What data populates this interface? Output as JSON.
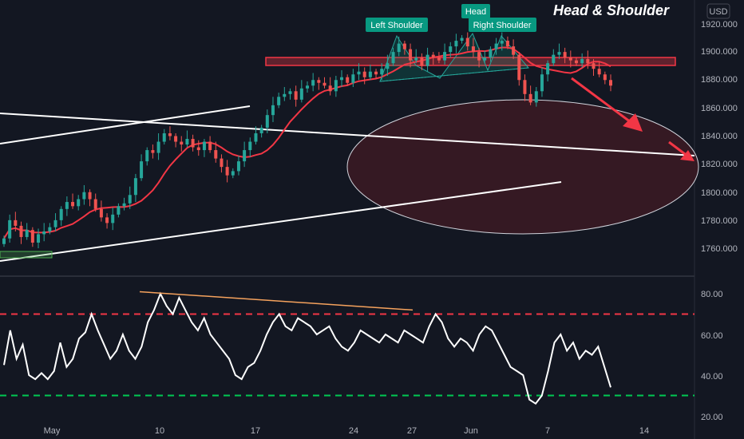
{
  "chart_data": [
    {
      "type": "candlestick",
      "title": "Head & Shoulder",
      "currency": "USD",
      "y_ticks": [
        "1920.000",
        "1900.000",
        "1880.000",
        "1860.000",
        "1840.000",
        "1820.000",
        "1800.000",
        "1780.000",
        "1760.000"
      ],
      "ylim": [
        1748,
        1924
      ],
      "x_ticks": [
        "May",
        "10",
        "17",
        "24",
        "27",
        "Jun",
        "7",
        "14"
      ],
      "annotations": [
        "Left Shoulder",
        "Head",
        "Right Shoulder"
      ],
      "colors": {
        "up": "#26a69a",
        "down": "#ef5350",
        "ma": "#f23645",
        "lines": "#ffffff",
        "zone": "#f23645",
        "ellipse_fill": "#3a1a24"
      },
      "closes": [
        1767,
        1780,
        1776,
        1768,
        1773,
        1764,
        1770,
        1772,
        1775,
        1780,
        1788,
        1793,
        1790,
        1795,
        1800,
        1795,
        1788,
        1782,
        1778,
        1784,
        1790,
        1792,
        1798,
        1810,
        1822,
        1830,
        1828,
        1836,
        1842,
        1840,
        1836,
        1834,
        1838,
        1832,
        1830,
        1836,
        1830,
        1824,
        1818,
        1812,
        1815,
        1822,
        1830,
        1836,
        1842,
        1846,
        1855,
        1862,
        1868,
        1870,
        1872,
        1866,
        1874,
        1876,
        1880,
        1878,
        1876,
        1872,
        1880,
        1882,
        1878,
        1884,
        1886,
        1882,
        1886,
        1884,
        1888,
        1892,
        1900,
        1906,
        1902,
        1894,
        1896,
        1890,
        1898,
        1896,
        1894,
        1900,
        1904,
        1908,
        1910,
        1904,
        1900,
        1894,
        1896,
        1902,
        1906,
        1908,
        1904,
        1898,
        1880,
        1870,
        1864,
        1872,
        1884,
        1892,
        1898,
        1900,
        1896,
        1894,
        1892,
        1895,
        1892,
        1888,
        1884,
        1880,
        1876
      ]
    },
    {
      "type": "line",
      "indicator": "RSI",
      "y_ticks": [
        "80.00",
        "60.00",
        "40.00",
        "20.00"
      ],
      "ylim": [
        20,
        86
      ],
      "levels": [
        70,
        30
      ],
      "colors": {
        "line": "#ffffff",
        "upper": "#f23645",
        "lower": "#00c853",
        "divergence": "#f5a25d"
      },
      "values": [
        45,
        62,
        48,
        55,
        40,
        38,
        41,
        38,
        42,
        56,
        44,
        48,
        58,
        61,
        70,
        62,
        55,
        48,
        52,
        60,
        52,
        48,
        54,
        66,
        72,
        80,
        74,
        70,
        78,
        72,
        66,
        62,
        68,
        60,
        56,
        52,
        48,
        40,
        38,
        44,
        46,
        52,
        60,
        66,
        70,
        64,
        62,
        68,
        66,
        64,
        60,
        62,
        64,
        58,
        54,
        52,
        56,
        62,
        60,
        58,
        56,
        60,
        58,
        56,
        62,
        60,
        58,
        56,
        64,
        70,
        66,
        58,
        54,
        58,
        56,
        52,
        60,
        64,
        62,
        56,
        50,
        44,
        42,
        40,
        28,
        26,
        30,
        42,
        56,
        60,
        52,
        56,
        48,
        52,
        50,
        54,
        44,
        34
      ]
    }
  ]
}
